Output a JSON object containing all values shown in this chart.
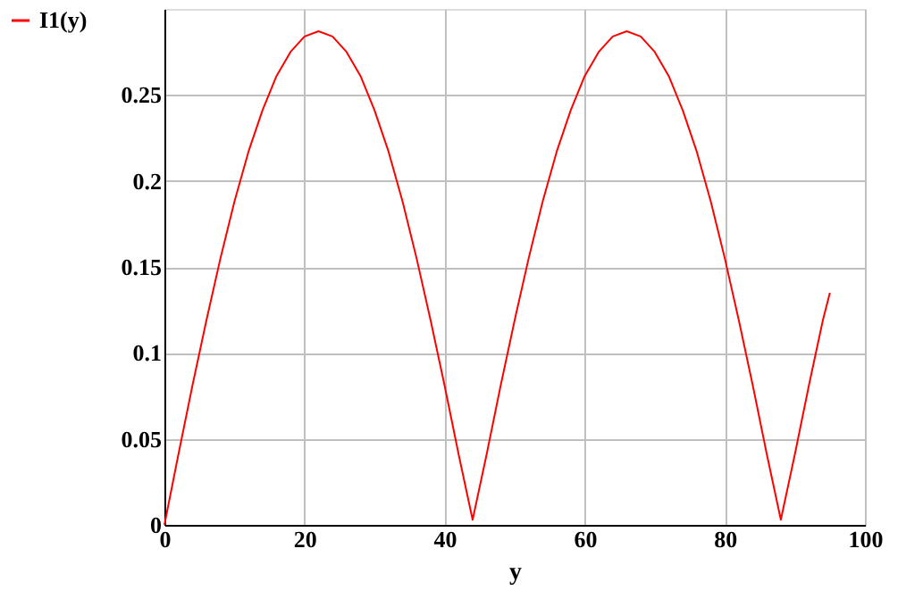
{
  "chart_data": {
    "type": "line",
    "xlabel": "y",
    "x": [
      0,
      2,
      4,
      6,
      8,
      10,
      12,
      14,
      16,
      18,
      20,
      22,
      24,
      26,
      28,
      30,
      32,
      34,
      36,
      38,
      40,
      42,
      44,
      46,
      48,
      50,
      52,
      54,
      56,
      58,
      60,
      62,
      64,
      66,
      68,
      70,
      72,
      74,
      76,
      78,
      80,
      82,
      84,
      86,
      88,
      90,
      92,
      94,
      95
    ],
    "series": [
      {
        "name": "I1(y)",
        "color": "#ff0000",
        "values": [
          0,
          0.041,
          0.081,
          0.119,
          0.155,
          0.188,
          0.217,
          0.241,
          0.261,
          0.275,
          0.284,
          0.287,
          0.284,
          0.275,
          0.261,
          0.241,
          0.217,
          0.188,
          0.155,
          0.119,
          0.081,
          0.041,
          0.003,
          0.041,
          0.081,
          0.119,
          0.155,
          0.188,
          0.217,
          0.241,
          0.261,
          0.275,
          0.284,
          0.287,
          0.284,
          0.275,
          0.261,
          0.241,
          0.217,
          0.188,
          0.155,
          0.119,
          0.081,
          0.041,
          0.003,
          0.041,
          0.081,
          0.119,
          0.135
        ]
      }
    ],
    "xlim": [
      0,
      100
    ],
    "xticks": [
      0,
      20,
      40,
      60,
      80,
      100
    ],
    "ylim": [
      0,
      0.3
    ],
    "yticks": [
      0,
      0.05,
      0.1,
      0.15,
      0.2,
      0.25
    ],
    "grid": true,
    "legend": "left",
    "marker": "none",
    "line_style": "solid"
  }
}
